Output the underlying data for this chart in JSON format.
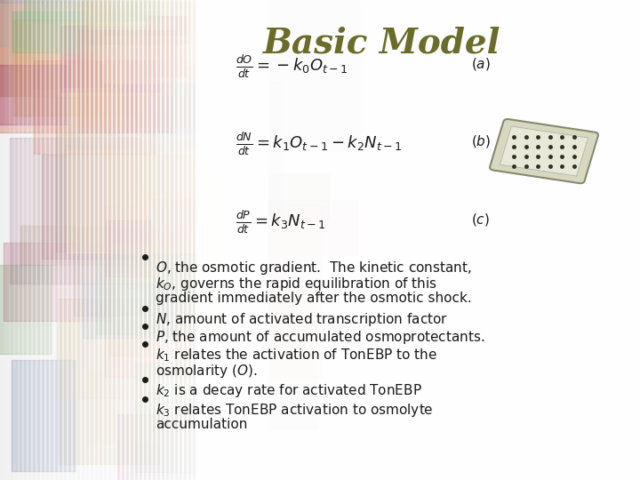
{
  "title": "Basic Model",
  "title_color": "#6b6b2a",
  "title_fontsize": 28,
  "bg_color": "#ffffff",
  "text_color": "#1a1a1a",
  "eq_fontsize": 13,
  "label_fontsize": 11,
  "bullet_fontsize": 11,
  "bullet_items": [
    "$O$, the osmotic gradient.  The kinetic constant,",
    "$k_O$, governs the rapid equilibration of this",
    "gradient immediately after the osmotic shock.",
    "$N$, amount of activated transcription factor",
    "$P$, the amount of accumulated osmoprotectants.",
    "$k_1$ relates the activation of TonEBP to the",
    "osmolarity ($O$).",
    "$k_2$ is a decay rate for activated TonEBP",
    "$k_3$ relates TonEBP activation to osmolyte",
    "accumulation"
  ]
}
